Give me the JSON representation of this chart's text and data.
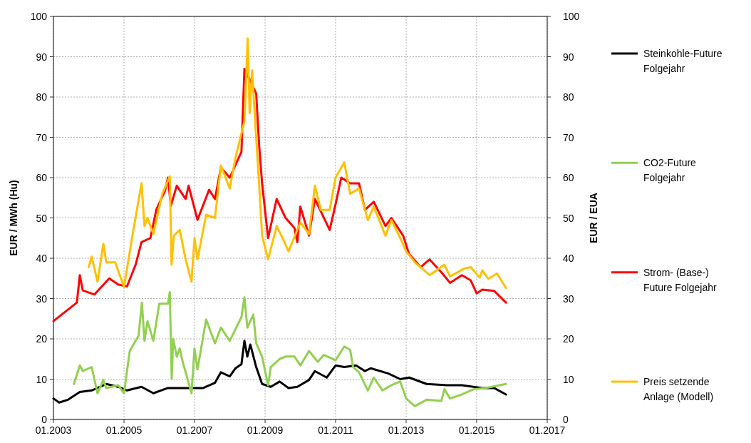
{
  "chart_data": {
    "type": "line",
    "ylabel": "EUR / MWh (Hu)",
    "y2label": "EUR / EUA",
    "xlim": [
      "2003-01",
      "2017-01"
    ],
    "xticks": [
      {
        "value": "2003-01",
        "label": "01.2003"
      },
      {
        "value": "2005-01",
        "label": "01.2005"
      },
      {
        "value": "2007-01",
        "label": "01.2007"
      },
      {
        "value": "2009-01",
        "label": "01.2009"
      },
      {
        "value": "2011-01",
        "label": "01.2011"
      },
      {
        "value": "2013-01",
        "label": "01.2013"
      },
      {
        "value": "2015-01",
        "label": "01.2015"
      },
      {
        "value": "2017-01",
        "label": "01.2017"
      }
    ],
    "ylim": [
      0,
      100
    ],
    "yticks": [
      0,
      10,
      20,
      30,
      40,
      50,
      60,
      70,
      80,
      90,
      100
    ],
    "y2lim": [
      0,
      100
    ],
    "y2ticks": [
      0,
      10,
      20,
      30,
      40,
      50,
      60,
      70,
      80,
      90,
      100
    ],
    "grid": true,
    "legend": "right",
    "line_style": "solid",
    "series": [
      {
        "name": "Steinkohle-Future\nFolgejahr",
        "color": "#000000",
        "x": [
          "2003-01",
          "2003-03",
          "2003-06",
          "2003-10",
          "2004-02",
          "2004-07",
          "2004-11",
          "2005-02",
          "2005-07",
          "2005-11",
          "2006-04",
          "2006-11",
          "2007-04",
          "2007-08",
          "2007-10",
          "2008-01",
          "2008-03",
          "2008-05",
          "2008-06",
          "2008-07",
          "2008-08",
          "2008-10",
          "2008-12",
          "2009-03",
          "2009-06",
          "2009-09",
          "2009-12",
          "2010-04",
          "2010-06",
          "2010-10",
          "2011-01",
          "2011-04",
          "2011-08",
          "2011-11",
          "2012-01",
          "2012-07",
          "2012-11",
          "2013-02",
          "2013-08",
          "2014-03",
          "2014-08",
          "2015-03",
          "2015-07",
          "2015-11"
        ],
        "values": [
          5.2,
          4.2,
          4.9,
          6.8,
          7.2,
          8.8,
          8.1,
          7.2,
          8.1,
          6.5,
          7.8,
          7.8,
          7.8,
          9.1,
          11.7,
          10.7,
          12.7,
          13.7,
          19.5,
          15.6,
          18.6,
          13,
          8.8,
          8.1,
          9.4,
          7.8,
          8.1,
          9.8,
          12,
          10.4,
          13.4,
          13,
          13.4,
          12,
          12.7,
          11.4,
          10,
          10.4,
          8.8,
          8.5,
          8.5,
          7.8,
          7.8,
          6.2
        ]
      },
      {
        "name": "CO2-Future\nFolgejahr",
        "color": "#92d050",
        "x": [
          "2003-08",
          "2003-10",
          "2003-11",
          "2004-02",
          "2004-04",
          "2004-06",
          "2004-07",
          "2004-11",
          "2005-01",
          "2005-03",
          "2005-06-01",
          "2005-07-05",
          "2005-08-01",
          "2005-09",
          "2005-11",
          "2006-01",
          "2006-04-01",
          "2006-04-20",
          "2006-05-10",
          "2006-05-25",
          "2006-07",
          "2006-08",
          "2006-09",
          "2006-12",
          "2007-01",
          "2007-02",
          "2007-05",
          "2007-08",
          "2007-10",
          "2008-01",
          "2008-05",
          "2008-06",
          "2008-07",
          "2008-09",
          "2008-10",
          "2008-12",
          "2009-02",
          "2009-03",
          "2009-06",
          "2009-08",
          "2009-11",
          "2010-01",
          "2010-04",
          "2010-07",
          "2010-09",
          "2011-01",
          "2011-04",
          "2011-06",
          "2011-07",
          "2011-09",
          "2011-12",
          "2012-02",
          "2012-05",
          "2012-08",
          "2012-11",
          "2013-01",
          "2013-04",
          "2013-08",
          "2014-01",
          "2014-02",
          "2014-04",
          "2014-08",
          "2014-12",
          "2015-04",
          "2015-11"
        ],
        "values": [
          8.8,
          13.4,
          12,
          13,
          6.5,
          9.8,
          7.8,
          8.5,
          6.5,
          17,
          20.8,
          29,
          19.5,
          24.4,
          19.5,
          28.7,
          28.7,
          31.6,
          10,
          20,
          15.6,
          17.6,
          14.3,
          6.5,
          17.6,
          12.4,
          24.8,
          18.9,
          22.8,
          19.5,
          25.4,
          30.3,
          22.8,
          26,
          18.9,
          15.6,
          8.5,
          13,
          15,
          15.6,
          15.6,
          13.4,
          17,
          14.3,
          16,
          14.7,
          18.1,
          17.3,
          13,
          11.7,
          7.2,
          10.4,
          7.2,
          8.5,
          9.4,
          5.2,
          3.3,
          4.9,
          4.6,
          7.5,
          5.2,
          6.2,
          7.5,
          7.8,
          8.8
        ]
      },
      {
        "name": "Strom- (Base-)\nFuture Folgejahr",
        "color": "#ff0000",
        "x": [
          "2003-01",
          "2003-09",
          "2003-10",
          "2003-11",
          "2004-03",
          "2004-08",
          "2004-11",
          "2005-02",
          "2005-05",
          "2005-07",
          "2005-10",
          "2005-12",
          "2006-03",
          "2006-04",
          "2006-05",
          "2006-07",
          "2006-10",
          "2006-11",
          "2007-02",
          "2007-06",
          "2007-08",
          "2007-10",
          "2008-01",
          "2008-05",
          "2008-06",
          "2008-08",
          "2008-10",
          "2008-11",
          "2008-12",
          "2009-02",
          "2009-05",
          "2009-08",
          "2009-11",
          "2009-12",
          "2010-01",
          "2010-04",
          "2010-06",
          "2010-11",
          "2011-01",
          "2011-03",
          "2011-06",
          "2011-09",
          "2011-11",
          "2012-02",
          "2012-06",
          "2012-08",
          "2012-12",
          "2013-02",
          "2013-06",
          "2013-09",
          "2014-01",
          "2014-04",
          "2014-08",
          "2014-11",
          "2015-01",
          "2015-03",
          "2015-07",
          "2015-11"
        ],
        "values": [
          24.4,
          29,
          35.8,
          32,
          31,
          35,
          33.5,
          33,
          38.4,
          44,
          45,
          52,
          56.7,
          60,
          53,
          58,
          54.7,
          58,
          49.5,
          57,
          54.7,
          62.5,
          60,
          66.4,
          87,
          84,
          80.8,
          67.8,
          58.6,
          45,
          54.7,
          50,
          47.5,
          44,
          52.8,
          45.6,
          54.7,
          47,
          53.4,
          60,
          58.6,
          58.6,
          52,
          54,
          48,
          50,
          45.6,
          41,
          37.8,
          39.7,
          36.5,
          33.9,
          35.8,
          34.5,
          31.3,
          32.2,
          31.9,
          29
        ]
      },
      {
        "name": "Preis setzende\nAnlage (Modell)",
        "color": "#ffc000",
        "x": [
          "2004-01",
          "2004-02",
          "2004-04",
          "2004-06",
          "2004-07",
          "2004-10",
          "2005-01",
          "2005-04",
          "2005-07-01",
          "2005-08-01",
          "2005-09",
          "2005-11",
          "2006-02",
          "2006-04-20",
          "2006-05-08",
          "2006-06",
          "2006-08",
          "2006-10",
          "2006-12",
          "2007-01",
          "2007-02",
          "2007-05",
          "2007-08",
          "2007-10",
          "2008-01",
          "2008-03",
          "2008-06-01",
          "2008-07-05",
          "2008-07-25",
          "2008-08-20",
          "2008-09-20",
          "2008-11",
          "2008-12",
          "2009-02",
          "2009-05",
          "2009-07",
          "2009-09",
          "2010-01",
          "2010-04",
          "2010-06",
          "2010-08",
          "2010-11",
          "2011-01",
          "2011-04",
          "2011-06",
          "2011-09",
          "2011-12",
          "2012-02",
          "2012-06",
          "2012-08",
          "2012-11",
          "2013-01",
          "2013-04",
          "2013-09",
          "2014-02",
          "2014-04",
          "2014-09",
          "2014-11",
          "2015-02",
          "2015-03",
          "2015-05",
          "2015-08",
          "2015-11"
        ],
        "values": [
          37.8,
          40.4,
          34.2,
          43.6,
          39,
          39,
          32.9,
          46,
          58.6,
          48,
          50,
          46,
          56,
          60.3,
          38.4,
          45.6,
          47,
          39.7,
          34.2,
          45,
          39.7,
          50.8,
          50,
          63,
          57.3,
          65,
          74,
          94.5,
          76,
          86.6,
          74,
          58,
          45.6,
          39.7,
          48,
          45,
          41.7,
          48.9,
          46,
          58,
          52,
          52,
          60,
          63.8,
          56,
          57.3,
          49.5,
          52.8,
          45.6,
          49.5,
          45,
          41.7,
          39,
          35.8,
          38.4,
          35.5,
          37.5,
          37.8,
          35.2,
          37,
          34.9,
          36.2,
          32.6
        ]
      }
    ]
  }
}
